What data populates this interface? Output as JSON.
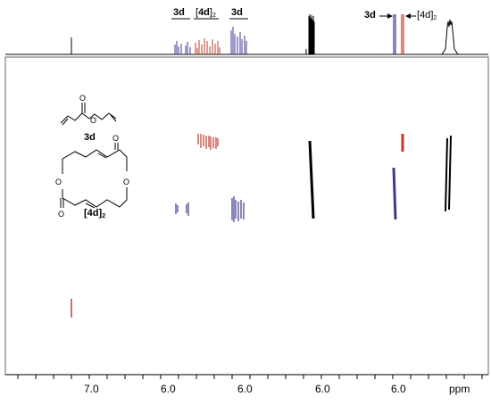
{
  "spectrum": {
    "x_unit": "ppm",
    "x_tick_labels": [
      "7.0",
      "6.0",
      "6.0",
      "6.0",
      "6.0"
    ]
  },
  "labels": {
    "compound_3d": "3d",
    "compound_4d": "4d",
    "compound_4d_sub": "2",
    "top_3d_a": "3d",
    "top_4d_a": "4d",
    "top_3d_b": "3d",
    "top_3d_c": "3d",
    "top_4d_c": "4d"
  },
  "colors": {
    "series_3d": "#3c3a8c",
    "series_4d": "#c0392b",
    "other": "#000000"
  },
  "chart_data": {
    "type": "scatter",
    "xlabel": "ppm",
    "x_tick_labels": [
      "7.0",
      "6.0",
      "6.0",
      "6.0",
      "6.0"
    ],
    "series": [
      {
        "name": "3d",
        "color": "#3c3a8c"
      },
      {
        "name": "[4d]2",
        "color": "#c0392b"
      }
    ]
  }
}
